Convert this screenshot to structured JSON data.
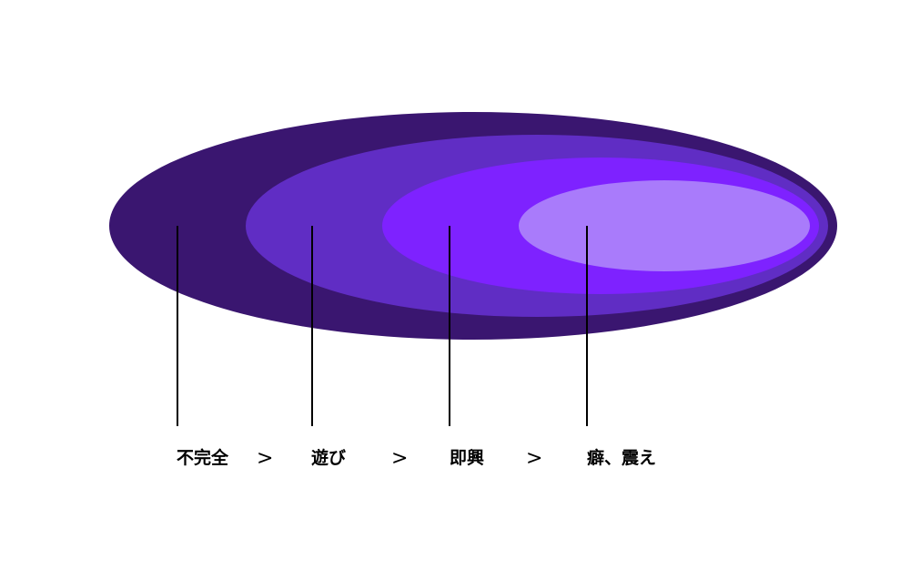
{
  "diagram": {
    "colors": {
      "layer1": "#3a1670",
      "layer2": "#602dc4",
      "layer3": "#7e22ff",
      "layer4": "#a97bfb",
      "line": "#000000",
      "text": "#000000"
    },
    "labels": {
      "level1": "不完全",
      "level2": "遊び",
      "level3": "即興",
      "level4": "癖、震え"
    },
    "separators": {
      "sep1": ">",
      "sep2": ">",
      "sep3": ">"
    }
  }
}
